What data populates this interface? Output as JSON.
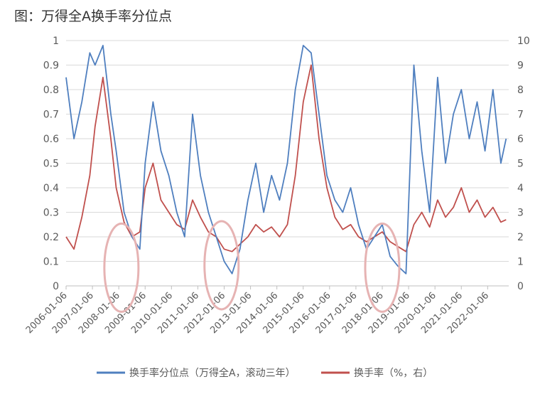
{
  "title": "图：万得全A换手率分位点",
  "colors": {
    "percentile": "#4F7FBF",
    "turnover": "#C0504D",
    "circle": "#E6B3B3",
    "grid": "#D9D9D9"
  },
  "chart_data": {
    "type": "line",
    "title": "图：万得全A换手率分位点",
    "left_axis": {
      "min": 0,
      "max": 1,
      "ticks": [
        "0",
        "0.1",
        "0.2",
        "0.3",
        "0.4",
        "0.5",
        "0.6",
        "0.7",
        "0.8",
        "0.9",
        "1"
      ]
    },
    "right_axis": {
      "min": 0,
      "max": 10,
      "ticks": [
        "0",
        "1",
        "2",
        "3",
        "4",
        "5",
        "6",
        "7",
        "8",
        "9",
        "10"
      ]
    },
    "x_ticks": [
      "2006-01-06",
      "2007-01-06",
      "2008-01-06",
      "2009-01-06",
      "2010-01-06",
      "2011-01-06",
      "2012-01-06",
      "2013-01-06",
      "2014-01-06",
      "2015-01-06",
      "2016-01-06",
      "2017-01-06",
      "2018-01-06",
      "2019-01-06",
      "2020-01-06",
      "2021-01-06",
      "2022-01-06"
    ],
    "x_range": [
      2006.0,
      2022.8
    ],
    "grid": "horizontal",
    "legend_position": "bottom",
    "series": [
      {
        "name": "换手率分位点（万得全A，滚动三年）",
        "axis": "left",
        "color": "#4F7FBF",
        "x": [
          2006.0,
          2006.3,
          2006.6,
          2006.9,
          2007.1,
          2007.4,
          2007.7,
          2007.9,
          2008.2,
          2008.5,
          2008.8,
          2009.0,
          2009.3,
          2009.6,
          2009.9,
          2010.2,
          2010.5,
          2010.8,
          2011.1,
          2011.4,
          2011.7,
          2012.0,
          2012.3,
          2012.6,
          2012.9,
          2013.2,
          2013.5,
          2013.8,
          2014.1,
          2014.4,
          2014.7,
          2015.0,
          2015.3,
          2015.6,
          2015.9,
          2016.2,
          2016.5,
          2016.8,
          2017.1,
          2017.4,
          2017.7,
          2018.0,
          2018.3,
          2018.6,
          2018.9,
          2019.2,
          2019.5,
          2019.8,
          2020.1,
          2020.4,
          2020.7,
          2021.0,
          2021.3,
          2021.6,
          2021.9,
          2022.2,
          2022.5,
          2022.7
        ],
        "y": [
          0.85,
          0.6,
          0.75,
          0.95,
          0.9,
          0.98,
          0.7,
          0.55,
          0.3,
          0.2,
          0.15,
          0.5,
          0.75,
          0.55,
          0.45,
          0.3,
          0.2,
          0.7,
          0.45,
          0.3,
          0.2,
          0.1,
          0.05,
          0.15,
          0.35,
          0.5,
          0.3,
          0.45,
          0.35,
          0.5,
          0.8,
          0.98,
          0.95,
          0.7,
          0.45,
          0.35,
          0.3,
          0.4,
          0.25,
          0.15,
          0.2,
          0.25,
          0.12,
          0.08,
          0.05,
          0.9,
          0.55,
          0.3,
          0.85,
          0.5,
          0.7,
          0.8,
          0.6,
          0.75,
          0.55,
          0.8,
          0.5,
          0.6
        ]
      },
      {
        "name": "换手率（%，右）",
        "axis": "right",
        "color": "#C0504D",
        "x": [
          2006.0,
          2006.3,
          2006.6,
          2006.9,
          2007.1,
          2007.4,
          2007.7,
          2007.9,
          2008.2,
          2008.5,
          2008.8,
          2009.0,
          2009.3,
          2009.6,
          2009.9,
          2010.2,
          2010.5,
          2010.8,
          2011.1,
          2011.4,
          2011.7,
          2012.0,
          2012.3,
          2012.6,
          2012.9,
          2013.2,
          2013.5,
          2013.8,
          2014.1,
          2014.4,
          2014.7,
          2015.0,
          2015.3,
          2015.6,
          2015.9,
          2016.2,
          2016.5,
          2016.8,
          2017.1,
          2017.4,
          2017.7,
          2018.0,
          2018.3,
          2018.6,
          2018.9,
          2019.2,
          2019.5,
          2019.8,
          2020.1,
          2020.4,
          2020.7,
          2021.0,
          2021.3,
          2021.6,
          2021.9,
          2022.2,
          2022.5,
          2022.7
        ],
        "y": [
          2.0,
          1.5,
          2.8,
          4.5,
          6.5,
          8.5,
          6.0,
          4.0,
          2.6,
          2.0,
          2.2,
          4.0,
          5.0,
          3.5,
          3.0,
          2.5,
          2.3,
          3.5,
          2.8,
          2.2,
          2.0,
          1.5,
          1.4,
          1.7,
          2.0,
          2.5,
          2.2,
          2.4,
          2.0,
          2.5,
          4.5,
          7.5,
          9.0,
          6.0,
          4.0,
          2.8,
          2.3,
          2.5,
          2.0,
          1.8,
          2.0,
          2.2,
          1.8,
          1.6,
          1.4,
          2.5,
          3.0,
          2.4,
          3.5,
          2.8,
          3.2,
          4.0,
          3.0,
          3.5,
          2.8,
          3.2,
          2.6,
          2.7
        ]
      }
    ],
    "annotations": [
      {
        "type": "ellipse",
        "x": 2008.1,
        "y_left": 0.08
      },
      {
        "type": "ellipse",
        "x": 2011.9,
        "y_left": 0.09
      },
      {
        "type": "ellipse",
        "x": 2018.0,
        "y_left": 0.08
      }
    ]
  }
}
